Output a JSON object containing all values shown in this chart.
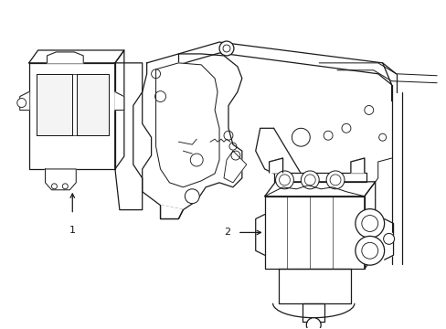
{
  "background_color": "#ffffff",
  "line_color": "#1a1a1a",
  "line_width": 0.9,
  "fig_width": 4.89,
  "fig_height": 3.6,
  "dpi": 100,
  "label1": "1",
  "label2": "2"
}
